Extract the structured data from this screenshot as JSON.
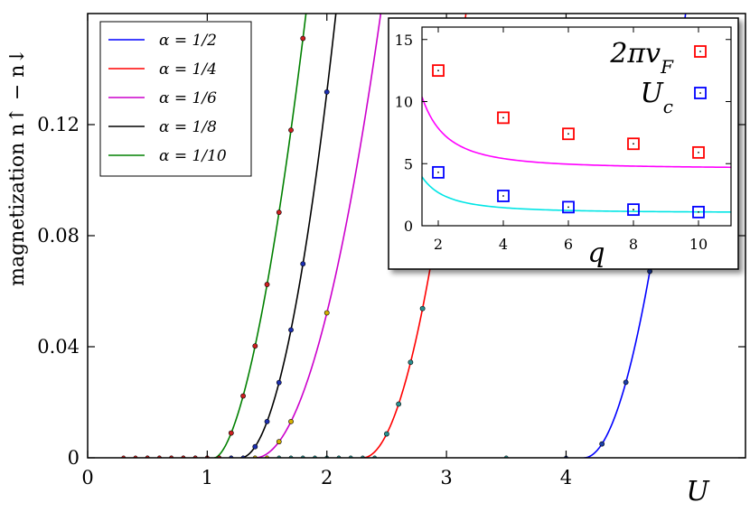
{
  "chart_data": [
    {
      "type": "line",
      "xlabel": "U",
      "ylabel": "magnetization n↑ − n↓",
      "xlim": [
        0,
        5.5
      ],
      "ylim": [
        0,
        0.16
      ],
      "x_ticks": [
        "0",
        "1",
        "2",
        "3",
        "4"
      ],
      "x_tick_values": [
        0,
        1,
        2,
        3,
        4
      ],
      "y_ticks": [
        "0",
        "0.04",
        "0.08",
        "0.12"
      ],
      "y_tick_values": [
        0,
        0.04,
        0.08,
        0.12
      ],
      "grid": false,
      "legend_position": "top-left",
      "series": [
        {
          "name": "α = 1/2",
          "color": "#0000ff",
          "marker_color": "#1c3fa8",
          "uc": 4.15,
          "a": 0.222,
          "p": 2.0,
          "curve_x_range": [
            4.15,
            5.5
          ],
          "points_x": [
            4.3,
            4.5,
            4.7,
            4.8
          ],
          "zero_points_x": [
            4.0
          ]
        },
        {
          "name": "α = 1/4",
          "color": "#ff0000",
          "marker_color": "#2a8f8f",
          "uc": 2.3,
          "a": 0.215,
          "p": 2.0,
          "curve_x_range": [
            2.3,
            3.3
          ],
          "points_x": [
            2.5,
            2.6,
            2.7,
            2.8,
            2.9,
            3.0
          ],
          "zero_points_x": [
            1.3,
            1.4,
            1.5,
            1.6,
            1.7,
            1.8,
            1.9,
            2.0,
            2.1,
            2.2,
            2.3,
            2.4,
            3.5
          ]
        },
        {
          "name": "α = 1/6",
          "color": "#cc00cc",
          "marker_color": "#d4b000",
          "uc": 1.4,
          "a": 0.145,
          "p": 2.0,
          "curve_x_range": [
            1.4,
            2.45
          ],
          "points_x": [
            1.6,
            1.7,
            2.0
          ],
          "zero_points_x": [
            0.9,
            1.0,
            1.1,
            1.2,
            1.3,
            1.4,
            1.5
          ]
        },
        {
          "name": "α = 1/8",
          "color": "#000000",
          "marker_color": "#1c2fb0",
          "uc": 1.28,
          "a": 0.25,
          "p": 1.95,
          "curve_x_range": [
            1.28,
            2.15
          ],
          "points_x": [
            1.4,
            1.5,
            1.6,
            1.7,
            1.8,
            2.0
          ],
          "zero_points_x": [
            0.5,
            0.6,
            0.7,
            0.8,
            0.9,
            1.0,
            1.1,
            1.2,
            1.3
          ]
        },
        {
          "name": "α = 1/10",
          "color": "#008000",
          "marker_color": "#cc2020",
          "uc": 1.06,
          "a": 0.252,
          "p": 1.7,
          "curve_x_range": [
            1.06,
            1.9
          ],
          "points_x": [
            1.2,
            1.3,
            1.4,
            1.5,
            1.6,
            1.7,
            1.8
          ],
          "zero_points_x": [
            0.3,
            0.4,
            0.5,
            0.6,
            0.7,
            0.8,
            0.9,
            1.0,
            1.1
          ]
        }
      ]
    },
    {
      "type": "scatter",
      "xlabel": "q",
      "ylabel": "",
      "xlim": [
        1.5,
        11
      ],
      "ylim": [
        0,
        16
      ],
      "x_ticks": [
        "2",
        "4",
        "6",
        "8",
        "10"
      ],
      "x_tick_values": [
        2,
        4,
        6,
        8,
        10
      ],
      "y_ticks": [
        "0",
        "5",
        "10",
        "15"
      ],
      "y_tick_values": [
        0,
        5,
        10,
        15
      ],
      "grid": false,
      "legend_position": "top-right",
      "series": [
        {
          "name": "2πv_F",
          "name_display": "2πv",
          "name_sub": "F",
          "marker_color": "#ff0000",
          "fit_color": "#ff00ff",
          "x": [
            2,
            4,
            6,
            8,
            10
          ],
          "values": [
            12.5,
            8.7,
            7.4,
            6.6,
            5.9
          ],
          "fit": {
            "a": 4.6,
            "b": 13.0
          }
        },
        {
          "name": "U_c",
          "name_display": "U",
          "name_sub": "c",
          "marker_color": "#0000ff",
          "fit_color": "#00e5e5",
          "x": [
            2,
            4,
            6,
            8,
            10
          ],
          "values": [
            4.3,
            2.4,
            1.5,
            1.3,
            1.1
          ],
          "fit": {
            "a": 1.05,
            "b": 6.5
          }
        }
      ]
    }
  ]
}
